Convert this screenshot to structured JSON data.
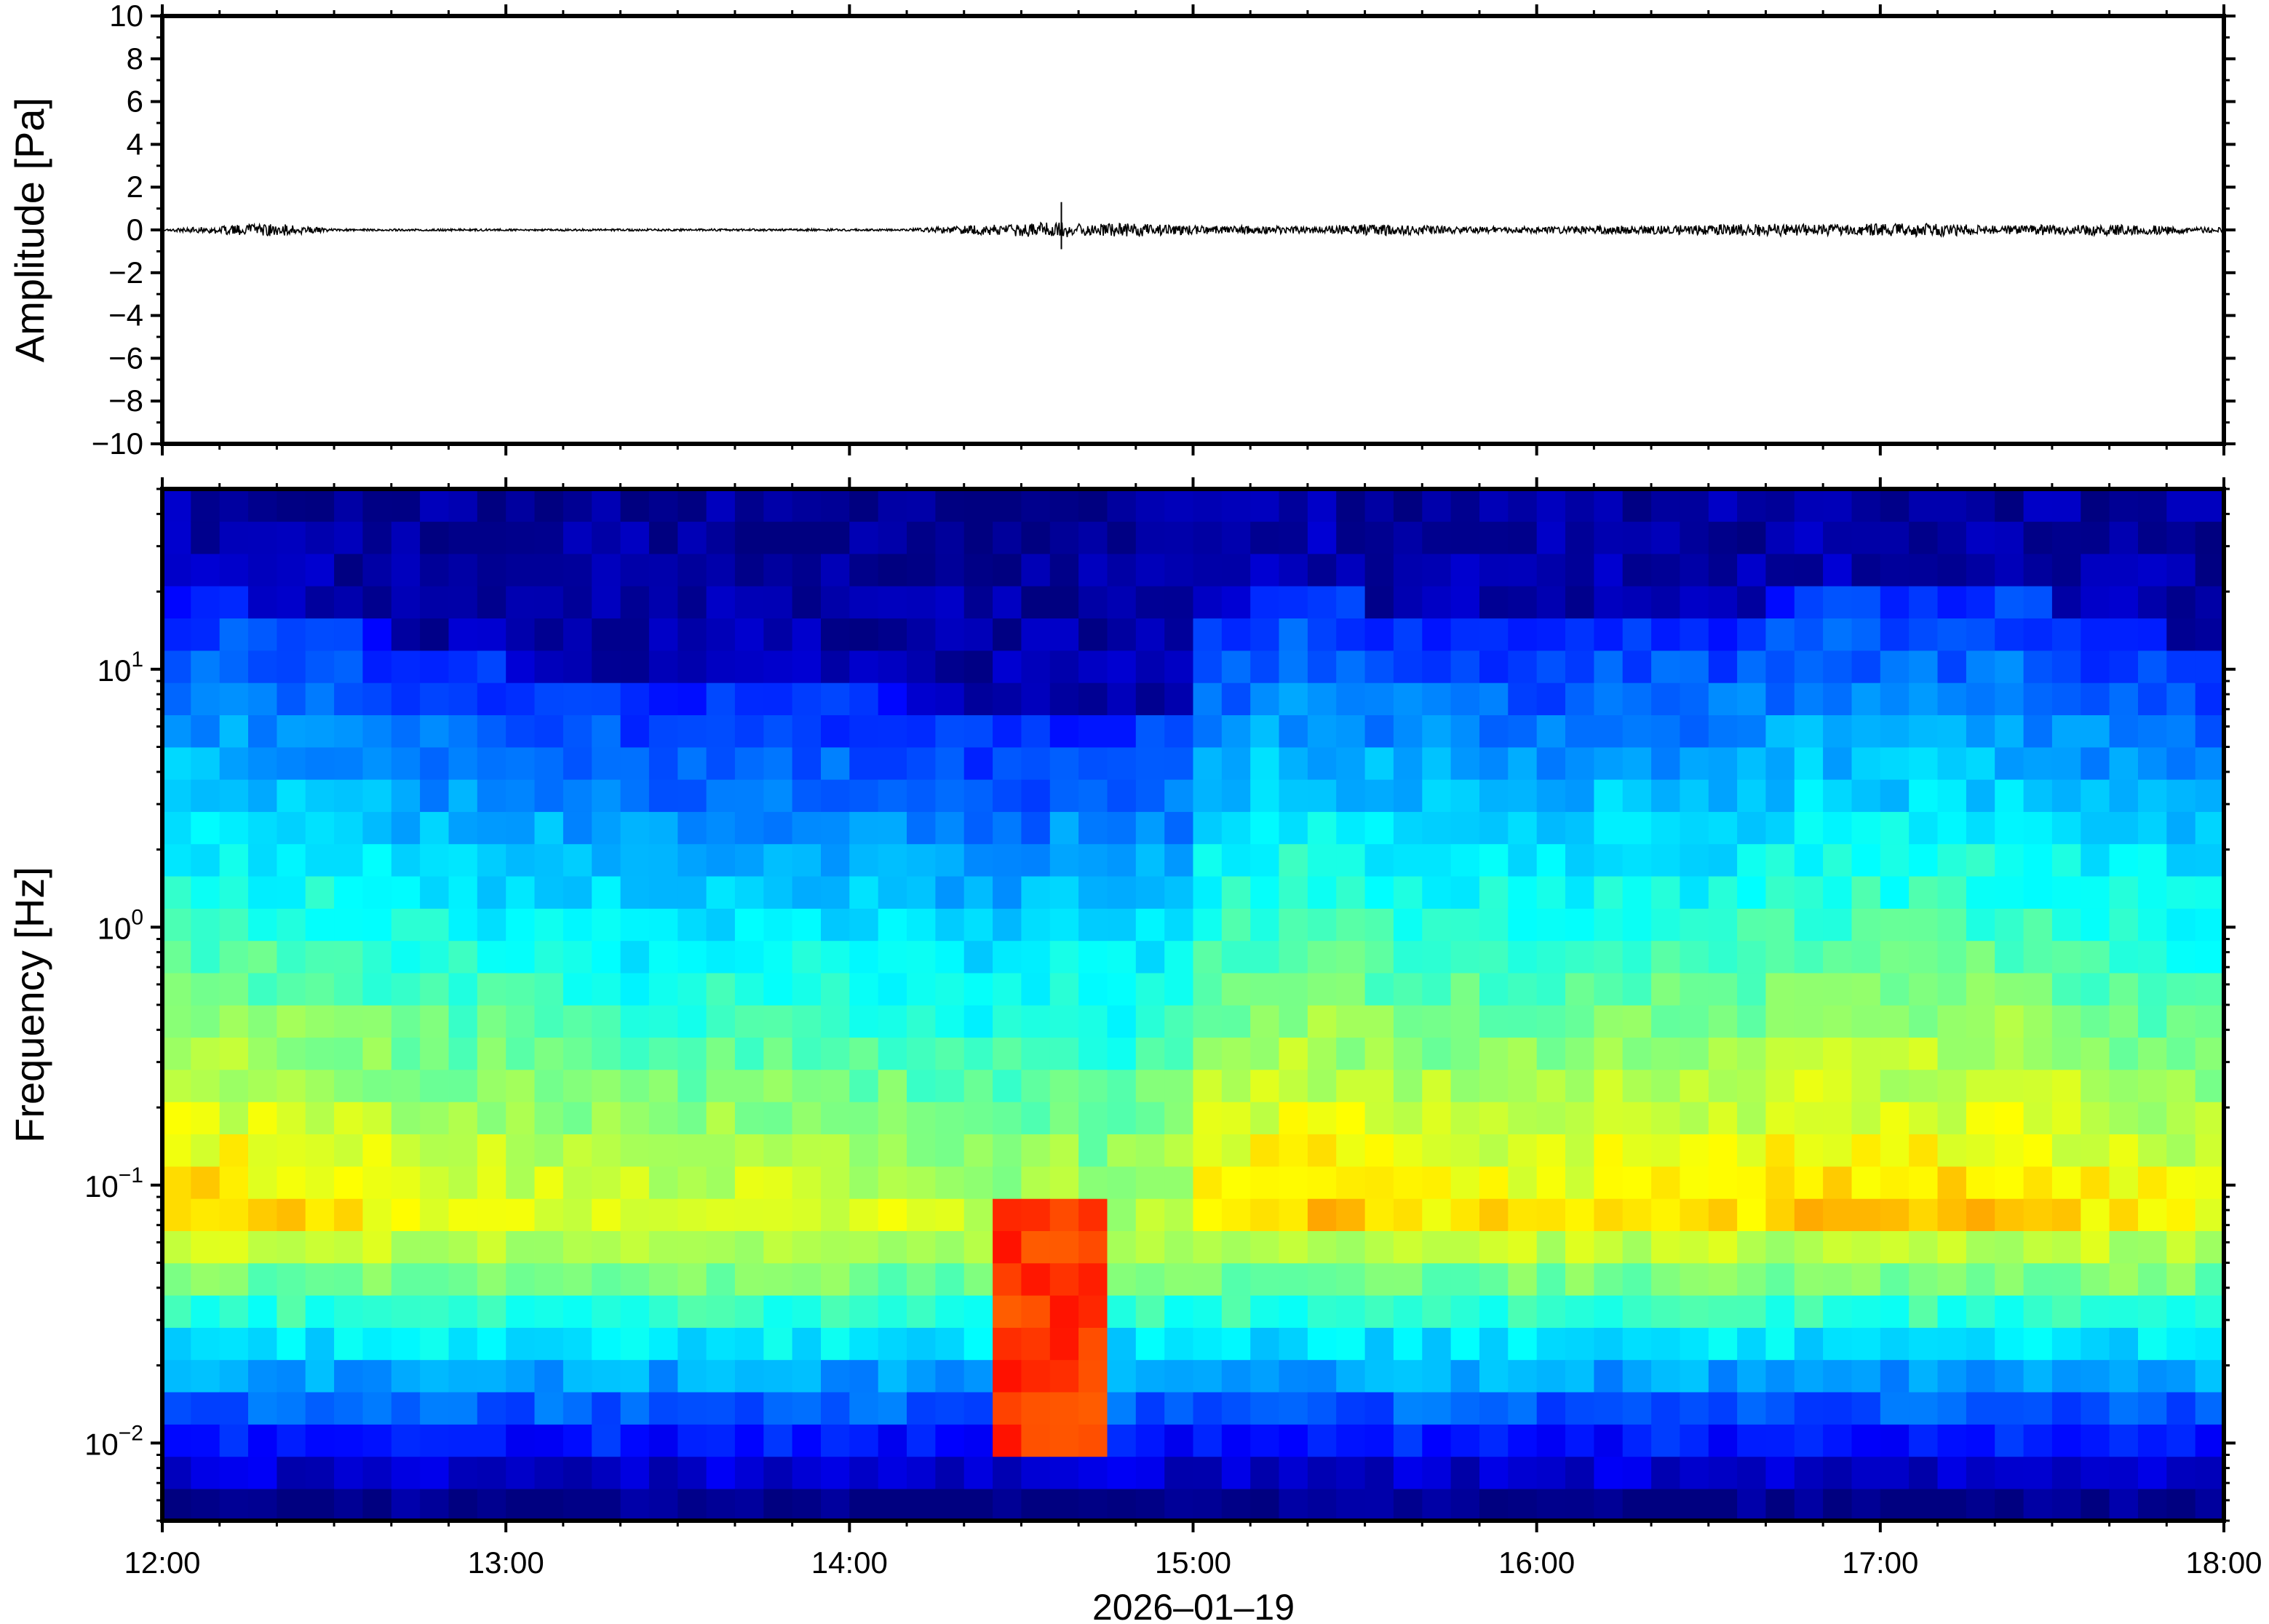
{
  "chart_data": [
    {
      "type": "line",
      "title": "",
      "xlabel": "",
      "ylabel": "Amplitude [Pa]",
      "ylim": [
        -10,
        10
      ],
      "yticks": [
        10,
        8,
        6,
        4,
        2,
        0,
        -2,
        -4,
        -6,
        -8,
        -10
      ],
      "ytick_labels": [
        "10",
        "8",
        "6",
        "4",
        "2",
        "0",
        "−2",
        "−4",
        "−6",
        "−8",
        "−10"
      ],
      "xlim": [
        "12:00",
        "18:00"
      ],
      "x_minutes": [
        0,
        10,
        20,
        30,
        40,
        50,
        60,
        70,
        80,
        90,
        100,
        110,
        120,
        130,
        140,
        150,
        155,
        157,
        158,
        160,
        170,
        180,
        190,
        200,
        210,
        220,
        230,
        240,
        250,
        260,
        270,
        280,
        290,
        300,
        310,
        320,
        330,
        340,
        350,
        360
      ],
      "values": [
        0.05,
        0.2,
        0.3,
        0.05,
        0.05,
        0.05,
        0.05,
        0.05,
        0.05,
        0.05,
        0.05,
        0.05,
        0.05,
        0.05,
        0.2,
        0.3,
        0.4,
        1.3,
        -0.9,
        0.3,
        0.3,
        0.2,
        0.2,
        0.15,
        0.3,
        0.2,
        0.15,
        0.15,
        0.2,
        0.2,
        0.25,
        0.3,
        0.25,
        0.3,
        0.3,
        0.2,
        0.25,
        0.25,
        0.2,
        0.1
      ],
      "series": [
        {
          "name": "",
          "color": "#000000"
        }
      ],
      "grid": false
    },
    {
      "type": "heatmap",
      "title": "",
      "xlabel": "2026‒01‒19",
      "ylabel": "Frequency [Hz]",
      "y_scale": "log",
      "ylim": [
        0.005,
        50
      ],
      "yticks": [
        10,
        1,
        0.1,
        0.01
      ],
      "ytick_labels": [
        {
          "base": "10",
          "exp": "1"
        },
        {
          "base": "10",
          "exp": "0"
        },
        {
          "base": "10",
          "exp": "−1"
        },
        {
          "base": "10",
          "exp": "−2"
        }
      ],
      "xlim": [
        "12:00",
        "18:00"
      ],
      "xtick_labels": [
        "12:00",
        "13:00",
        "14:00",
        "15:00",
        "16:00",
        "17:00",
        "18:00"
      ],
      "colormap": "jet",
      "time_bins": 72,
      "freq_bins": 32,
      "upper_edge_hz": [
        20,
        20,
        20,
        18,
        18,
        16,
        14,
        14,
        12,
        12,
        11,
        11,
        10,
        10,
        9,
        9,
        8,
        8,
        8,
        9,
        9,
        9,
        8,
        8,
        8,
        8,
        7,
        7,
        6,
        6,
        6,
        7,
        6,
        6,
        7,
        7,
        16,
        18,
        22,
        24,
        22,
        20,
        18,
        18,
        16,
        16,
        15,
        15,
        14,
        14,
        18,
        18,
        16,
        16,
        16,
        18,
        20,
        22,
        22,
        22,
        22,
        24,
        22,
        22,
        22,
        20,
        18,
        16,
        14,
        14,
        12,
        12
      ],
      "event_peak": {
        "time": "14:35",
        "freq_hz": [
          0.01,
          0.08
        ],
        "level": 0.82
      },
      "grid": false
    }
  ],
  "colors": {
    "frame": "#000000",
    "trace": "#000000",
    "background": "#ffffff",
    "colormap_low": "#00007f",
    "colormap_high": "#7f0000"
  }
}
